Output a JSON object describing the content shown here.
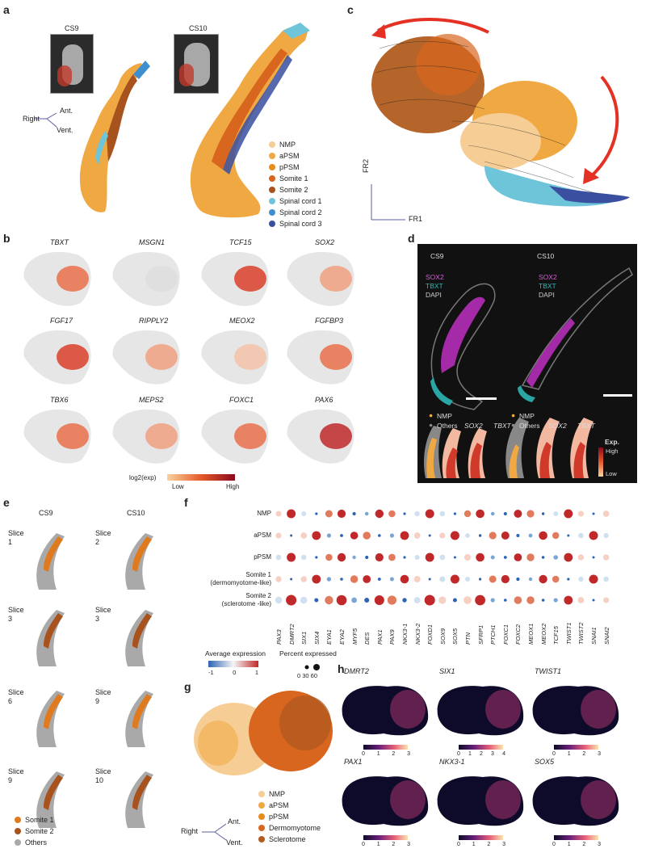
{
  "panel_labels": {
    "a": "a",
    "b": "b",
    "c": "c",
    "d": "d",
    "e": "e",
    "f": "f",
    "g": "g",
    "h": "h"
  },
  "panel_a": {
    "stage1": "CS9",
    "stage2": "CS10",
    "axes": {
      "ant": "Ant.",
      "right": "Right",
      "vent": "Vent."
    },
    "legend": [
      "NMP",
      "aPSM",
      "pPSM",
      "Somite 1",
      "Somite 2",
      "Spinal cord 1",
      "Spinal cord 2",
      "Spinal cord 3"
    ],
    "colors": [
      "#f6cd95",
      "#f0a942",
      "#e88a1c",
      "#d9661f",
      "#a8521e",
      "#6ec4d8",
      "#3e8fd0",
      "#3a4fa0"
    ]
  },
  "panel_b": {
    "genes": [
      "TBXT",
      "MSGN1",
      "TCF15",
      "SOX2",
      "FGF17",
      "RIPPLY2",
      "MEOX2",
      "FGFBP3",
      "TBX6",
      "MEPS2",
      "FOXC1",
      "PAX6"
    ],
    "colorbar_title": "log2(exp)",
    "low": "Low",
    "high": "High"
  },
  "panel_c": {
    "fr1": "FR1",
    "fr2": "FR2"
  },
  "panel_d": {
    "stage1": "CS9",
    "stage2": "CS10",
    "stains": [
      "SOX2",
      "TBXT",
      "DAPI"
    ],
    "legend_nmp": "NMP",
    "legend_others": "Others",
    "gene1": "SOX2",
    "gene2": "TBXT",
    "exp": "Exp.",
    "high": "High",
    "low": "Low"
  },
  "panel_e": {
    "stage1": "CS9",
    "stage2": "CS10",
    "slices_left": [
      "Slice\n1",
      "Slice\n3",
      "Slice\n6",
      "Slice\n9"
    ],
    "slices_right": [
      "Slice\n2",
      "Slice\n3",
      "Slice\n9",
      "Slice\n10"
    ],
    "legend": [
      "Somite 1",
      "Somite 2",
      "Others"
    ],
    "colors": [
      "#e07a1f",
      "#a8521e",
      "#a9a9a9"
    ]
  },
  "panel_f": {
    "rows": [
      "NMP",
      "aPSM",
      "pPSM",
      "Somite 1\n(dermomyotome-like)",
      "Somite 2\n(sclerotome -like)"
    ],
    "cols": [
      "PAX3",
      "DMRT2",
      "SIX1",
      "SIX4",
      "EYA1",
      "EYA2",
      "MYF5",
      "DES",
      "PAX1",
      "PAX9",
      "NKX3-1",
      "NKX3-2",
      "FOXD1",
      "SOX9",
      "SOX5",
      "PTN",
      "SFRP1",
      "PTCH1",
      "FOXC1",
      "FOXC2",
      "MEOX1",
      "MEOX2",
      "TCF15",
      "TWIST1",
      "TWIST2",
      "SNAI1",
      "SNAI2"
    ],
    "avg_title": "Average expression",
    "avg_ticks": [
      "-1",
      "0",
      "1"
    ],
    "pct_title": "Percent expressed",
    "pct_ticks": "0 30 60"
  },
  "panel_g": {
    "legend": [
      "NMP",
      "aPSM",
      "pPSM",
      "Dermomyotome",
      "Sclerotome"
    ],
    "colors": [
      "#f6cd95",
      "#f0a942",
      "#e88a1c",
      "#d9661f",
      "#b25a1f"
    ],
    "axes": {
      "ant": "Ant.",
      "right": "Right",
      "vent": "Vent."
    }
  },
  "panel_h": {
    "genes": [
      "DMRT2",
      "SIX1",
      "TWIST1",
      "PAX1",
      "NKX3-1",
      "SOX5"
    ],
    "ticks": [
      [
        "0",
        "1",
        "2",
        "3"
      ],
      [
        "0",
        "1",
        "2",
        "3",
        "4"
      ],
      [
        "0",
        "1",
        "2",
        "3"
      ],
      [
        "0",
        "1",
        "2",
        "3"
      ],
      [
        "0",
        "1",
        "2",
        "3"
      ],
      [
        "0",
        "1",
        "2",
        "3"
      ]
    ]
  }
}
